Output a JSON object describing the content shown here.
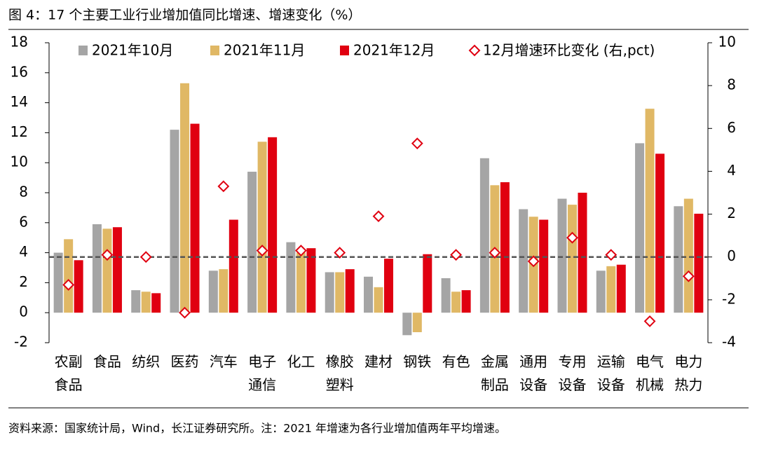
{
  "chart_data": {
    "type": "bar",
    "title": "图 4：17 个主要工业行业增加值同比增速、增速变化（%）",
    "source": "资料来源：国家统计局，Wind，长江证券研究所。注：2021 年增速为各行业增加值两年平均增速。",
    "categories": [
      "农副\n食品",
      "食品",
      "纺织",
      "医药",
      "汽车",
      "电子\n通信",
      "化工",
      "橡胶\n塑料",
      "建材",
      "钢铁",
      "有色",
      "金属\n制品",
      "通用\n设备",
      "专用\n设备",
      "运输\n设备",
      "电气\n机械",
      "电力\n热力"
    ],
    "series": [
      {
        "name": "2021年10月",
        "color": "#a5a5a5",
        "values": [
          4.0,
          5.9,
          1.5,
          12.2,
          2.8,
          9.4,
          4.7,
          2.7,
          2.4,
          -1.5,
          2.3,
          10.3,
          6.9,
          7.6,
          2.8,
          11.3,
          7.1
        ]
      },
      {
        "name": "2021年11月",
        "color": "#e0b865",
        "values": [
          4.9,
          5.6,
          1.4,
          15.3,
          2.9,
          11.4,
          4.0,
          2.7,
          1.7,
          -1.3,
          1.4,
          8.5,
          6.4,
          7.2,
          3.1,
          13.6,
          7.6
        ]
      },
      {
        "name": "2021年12月",
        "color": "#e00010",
        "values": [
          3.5,
          5.7,
          1.3,
          12.6,
          6.2,
          11.7,
          4.3,
          2.9,
          3.6,
          3.9,
          1.5,
          8.7,
          6.2,
          8.0,
          3.2,
          10.6,
          6.6
        ]
      },
      {
        "name": "12月增速环比变化 (右,pct)",
        "color": "#e00010",
        "type": "scatter",
        "axis": "y2",
        "values": [
          -1.3,
          0.1,
          0,
          -2.6,
          3.3,
          0.3,
          0.3,
          0.2,
          1.9,
          5.3,
          0.1,
          0.2,
          -0.2,
          0.9,
          0.1,
          -3.0,
          -0.9
        ]
      }
    ],
    "ylim": [
      -2,
      18
    ],
    "yticks": [
      -2,
      0,
      2,
      4,
      6,
      8,
      10,
      12,
      14,
      16,
      18
    ],
    "y2lim": [
      -4,
      10
    ],
    "y2ticks": [
      -4,
      -2,
      0,
      2,
      4,
      6,
      8,
      10
    ]
  }
}
